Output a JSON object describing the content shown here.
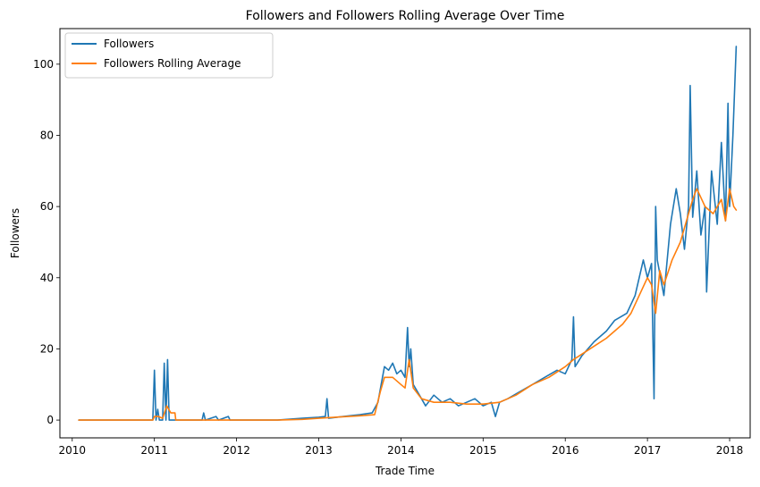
{
  "chart_data": {
    "type": "line",
    "title": "Followers and Followers Rolling Average Over Time",
    "xlabel": "Trade Time",
    "ylabel": "Followers",
    "xlim": [
      2009.85,
      2018.25
    ],
    "ylim": [
      -5,
      110
    ],
    "x_ticks": [
      2010,
      2011,
      2012,
      2013,
      2014,
      2015,
      2016,
      2017,
      2018
    ],
    "x_tick_labels": [
      "2010",
      "2011",
      "2012",
      "2013",
      "2014",
      "2015",
      "2016",
      "2017",
      "2018"
    ],
    "y_ticks": [
      0,
      20,
      40,
      60,
      80,
      100
    ],
    "y_tick_labels": [
      "0",
      "20",
      "40",
      "60",
      "80",
      "100"
    ],
    "grid": false,
    "legend_position": "top-left",
    "series": [
      {
        "name": "Followers",
        "color": "#1f77b4",
        "x": [
          2010.08,
          2010.9,
          2010.98,
          2011.0,
          2011.02,
          2011.04,
          2011.06,
          2011.1,
          2011.12,
          2011.14,
          2011.16,
          2011.18,
          2011.22,
          2011.5,
          2011.58,
          2011.6,
          2011.62,
          2011.75,
          2011.78,
          2011.9,
          2011.92,
          2012.5,
          2012.8,
          2013.0,
          2013.08,
          2013.1,
          2013.12,
          2013.3,
          2013.5,
          2013.65,
          2013.72,
          2013.76,
          2013.8,
          2013.85,
          2013.9,
          2013.95,
          2014.0,
          2014.05,
          2014.08,
          2014.1,
          2014.12,
          2014.15,
          2014.2,
          2014.3,
          2014.4,
          2014.5,
          2014.6,
          2014.7,
          2014.8,
          2014.9,
          2015.0,
          2015.1,
          2015.15,
          2015.2,
          2015.3,
          2015.45,
          2015.6,
          2015.75,
          2015.9,
          2016.0,
          2016.08,
          2016.1,
          2016.12,
          2016.2,
          2016.35,
          2016.5,
          2016.6,
          2016.75,
          2016.85,
          2016.95,
          2017.0,
          2017.05,
          2017.08,
          2017.1,
          2017.12,
          2017.2,
          2017.28,
          2017.35,
          2017.4,
          2017.45,
          2017.5,
          2017.52,
          2017.55,
          2017.6,
          2017.65,
          2017.7,
          2017.72,
          2017.78,
          2017.85,
          2017.9,
          2017.95,
          2017.98,
          2018.0,
          2018.04,
          2018.08
        ],
        "values": [
          0,
          0,
          0,
          14,
          0,
          3,
          0,
          0,
          16,
          0,
          17,
          0,
          0,
          0,
          0,
          2,
          0,
          1,
          0,
          1,
          0,
          0,
          0.5,
          0.8,
          1,
          6,
          0.5,
          1,
          1.5,
          2,
          5,
          10,
          15,
          14,
          16,
          13,
          14,
          12,
          26,
          15,
          20,
          10,
          8,
          4,
          7,
          5,
          6,
          4,
          5,
          6,
          4,
          5,
          1,
          5,
          6,
          8,
          10,
          12,
          14,
          13,
          17,
          29,
          15,
          18,
          22,
          25,
          28,
          30,
          35,
          45,
          40,
          44,
          6,
          60,
          45,
          35,
          55,
          65,
          58,
          48,
          60,
          94,
          57,
          70,
          52,
          60,
          36,
          70,
          55,
          78,
          56,
          89,
          60,
          80,
          105
        ]
      },
      {
        "name": "Followers Rolling Average",
        "color": "#ff7f0e",
        "x": [
          2010.08,
          2010.98,
          2011.0,
          2011.05,
          2011.1,
          2011.15,
          2011.2,
          2011.25,
          2011.26,
          2012.5,
          2012.8,
          2013.0,
          2013.2,
          2013.5,
          2013.68,
          2013.75,
          2013.8,
          2013.9,
          2014.0,
          2014.05,
          2014.1,
          2014.15,
          2014.25,
          2014.4,
          2014.6,
          2014.8,
          2015.0,
          2015.2,
          2015.4,
          2015.6,
          2015.8,
          2016.0,
          2016.1,
          2016.3,
          2016.5,
          2016.7,
          2016.8,
          2016.9,
          2017.0,
          2017.05,
          2017.1,
          2017.15,
          2017.2,
          2017.3,
          2017.4,
          2017.5,
          2017.55,
          2017.6,
          2017.7,
          2017.8,
          2017.9,
          2017.95,
          2018.0,
          2018.05,
          2018.08
        ],
        "values": [
          0,
          0,
          1,
          1,
          0.5,
          4,
          2,
          2,
          0,
          0,
          0.2,
          0.5,
          0.8,
          1.2,
          1.5,
          8,
          12,
          12,
          10,
          9,
          17,
          9,
          6,
          5,
          5,
          4.5,
          4.5,
          5,
          7,
          10,
          12,
          15,
          17,
          20,
          23,
          27,
          30,
          35,
          40,
          38,
          30,
          42,
          38,
          45,
          50,
          58,
          62,
          65,
          60,
          58,
          62,
          56,
          65,
          60,
          59
        ]
      }
    ]
  }
}
